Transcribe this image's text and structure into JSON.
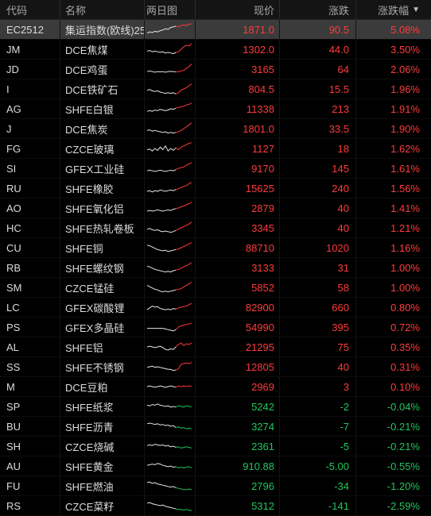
{
  "columns": {
    "code": "代码",
    "name": "名称",
    "spark": "两日图",
    "price": "现价",
    "change": "涨跌",
    "pct": "涨跌幅",
    "sort_indicator": "▼"
  },
  "colors": {
    "up": "#ff3b3b",
    "down": "#22c55e",
    "spark_base": "#e8e8e8"
  },
  "rows": [
    {
      "code": "EC2512",
      "name": "集运指数(欧线)25",
      "price": "1871.0",
      "change": "90.5",
      "pct": "5.08%",
      "dir": "up",
      "spark": [
        0.2,
        0.3,
        0.25,
        0.35,
        0.3,
        0.4,
        0.45,
        0.55,
        0.5,
        0.65,
        0.7,
        0.75,
        0.7,
        0.8,
        0.85,
        0.8,
        0.9,
        0.95
      ]
    },
    {
      "code": "JM",
      "name": "DCE焦煤",
      "price": "1302.0",
      "change": "44.0",
      "pct": "3.50%",
      "dir": "up",
      "spark": [
        0.35,
        0.4,
        0.3,
        0.35,
        0.3,
        0.25,
        0.3,
        0.2,
        0.25,
        0.2,
        0.15,
        0.25,
        0.3,
        0.5,
        0.7,
        0.8,
        0.75,
        0.95
      ]
    },
    {
      "code": "JD",
      "name": "DCE鸡蛋",
      "price": "3165",
      "change": "64",
      "pct": "2.06%",
      "dir": "up",
      "spark": [
        0.3,
        0.35,
        0.3,
        0.25,
        0.3,
        0.28,
        0.3,
        0.25,
        0.3,
        0.32,
        0.3,
        0.28,
        0.3,
        0.35,
        0.4,
        0.55,
        0.7,
        0.9
      ]
    },
    {
      "code": "I",
      "name": "DCE铁矿石",
      "price": "804.5",
      "change": "15.5",
      "pct": "1.96%",
      "dir": "up",
      "spark": [
        0.4,
        0.45,
        0.35,
        0.3,
        0.35,
        0.25,
        0.2,
        0.15,
        0.2,
        0.15,
        0.2,
        0.1,
        0.2,
        0.4,
        0.5,
        0.6,
        0.75,
        0.9
      ]
    },
    {
      "code": "AG",
      "name": "SHFE白银",
      "price": "11338",
      "change": "213",
      "pct": "1.91%",
      "dir": "up",
      "spark": [
        0.3,
        0.35,
        0.3,
        0.4,
        0.35,
        0.45,
        0.4,
        0.35,
        0.4,
        0.5,
        0.45,
        0.55,
        0.6,
        0.65,
        0.7,
        0.8,
        0.85,
        0.95
      ]
    },
    {
      "code": "J",
      "name": "DCE焦炭",
      "price": "1801.0",
      "change": "33.5",
      "pct": "1.90%",
      "dir": "up",
      "spark": [
        0.35,
        0.4,
        0.3,
        0.35,
        0.3,
        0.25,
        0.2,
        0.25,
        0.15,
        0.2,
        0.15,
        0.2,
        0.25,
        0.35,
        0.5,
        0.65,
        0.8,
        0.95
      ]
    },
    {
      "code": "FG",
      "name": "CZCE玻璃",
      "price": "1127",
      "change": "18",
      "pct": "1.62%",
      "dir": "up",
      "spark": [
        0.4,
        0.45,
        0.3,
        0.5,
        0.35,
        0.6,
        0.4,
        0.7,
        0.3,
        0.5,
        0.35,
        0.55,
        0.4,
        0.6,
        0.7,
        0.8,
        0.9,
        0.95
      ]
    },
    {
      "code": "SI",
      "name": "GFEX工业硅",
      "price": "9170",
      "change": "145",
      "pct": "1.61%",
      "dir": "up",
      "spark": [
        0.3,
        0.35,
        0.3,
        0.25,
        0.3,
        0.35,
        0.3,
        0.25,
        0.3,
        0.35,
        0.3,
        0.4,
        0.5,
        0.55,
        0.6,
        0.75,
        0.85,
        0.95
      ]
    },
    {
      "code": "RU",
      "name": "SHFE橡胶",
      "price": "15625",
      "change": "240",
      "pct": "1.56%",
      "dir": "up",
      "spark": [
        0.25,
        0.3,
        0.2,
        0.3,
        0.25,
        0.35,
        0.3,
        0.25,
        0.3,
        0.35,
        0.3,
        0.4,
        0.45,
        0.55,
        0.65,
        0.7,
        0.85,
        0.95
      ]
    },
    {
      "code": "AO",
      "name": "SHFE氧化铝",
      "price": "2879",
      "change": "40",
      "pct": "1.41%",
      "dir": "up",
      "spark": [
        0.25,
        0.3,
        0.25,
        0.3,
        0.35,
        0.3,
        0.25,
        0.3,
        0.35,
        0.3,
        0.4,
        0.45,
        0.5,
        0.6,
        0.65,
        0.75,
        0.85,
        0.95
      ]
    },
    {
      "code": "HC",
      "name": "SHFE热轧卷板",
      "price": "3345",
      "change": "40",
      "pct": "1.21%",
      "dir": "up",
      "spark": [
        0.4,
        0.45,
        0.35,
        0.3,
        0.35,
        0.25,
        0.2,
        0.25,
        0.2,
        0.15,
        0.2,
        0.3,
        0.4,
        0.5,
        0.6,
        0.7,
        0.8,
        0.95
      ]
    },
    {
      "code": "CU",
      "name": "SHFE铜",
      "price": "88710",
      "change": "1020",
      "pct": "1.16%",
      "dir": "up",
      "spark": [
        0.7,
        0.65,
        0.55,
        0.45,
        0.35,
        0.3,
        0.25,
        0.3,
        0.2,
        0.25,
        0.3,
        0.35,
        0.4,
        0.5,
        0.6,
        0.7,
        0.8,
        0.9
      ]
    },
    {
      "code": "RB",
      "name": "SHFE螺纹钢",
      "price": "3133",
      "change": "31",
      "pct": "1.00%",
      "dir": "up",
      "spark": [
        0.6,
        0.55,
        0.45,
        0.35,
        0.3,
        0.25,
        0.2,
        0.15,
        0.2,
        0.15,
        0.25,
        0.3,
        0.35,
        0.45,
        0.55,
        0.65,
        0.75,
        0.9
      ]
    },
    {
      "code": "SM",
      "name": "CZCE锰硅",
      "price": "5852",
      "change": "58",
      "pct": "1.00%",
      "dir": "up",
      "spark": [
        0.65,
        0.55,
        0.45,
        0.35,
        0.3,
        0.2,
        0.15,
        0.2,
        0.15,
        0.2,
        0.25,
        0.3,
        0.35,
        0.4,
        0.55,
        0.65,
        0.8,
        0.9
      ]
    },
    {
      "code": "LC",
      "name": "GFEX碳酸锂",
      "price": "82900",
      "change": "660",
      "pct": "0.80%",
      "dir": "up",
      "spark": [
        0.3,
        0.45,
        0.6,
        0.5,
        0.55,
        0.4,
        0.35,
        0.3,
        0.35,
        0.3,
        0.4,
        0.35,
        0.45,
        0.5,
        0.55,
        0.6,
        0.7,
        0.8
      ]
    },
    {
      "code": "PS",
      "name": "GFEX多晶硅",
      "price": "54990",
      "change": "395",
      "pct": "0.72%",
      "dir": "up",
      "spark": [
        0.4,
        0.4,
        0.4,
        0.4,
        0.4,
        0.4,
        0.4,
        0.35,
        0.3,
        0.25,
        0.2,
        0.3,
        0.5,
        0.6,
        0.65,
        0.7,
        0.75,
        0.8
      ]
    },
    {
      "code": "AL",
      "name": "SHFE铝",
      "price": "21295",
      "change": "75",
      "pct": "0.35%",
      "dir": "up",
      "spark": [
        0.5,
        0.55,
        0.5,
        0.45,
        0.5,
        0.55,
        0.45,
        0.3,
        0.25,
        0.35,
        0.3,
        0.5,
        0.7,
        0.8,
        0.6,
        0.75,
        0.7,
        0.8
      ]
    },
    {
      "code": "SS",
      "name": "SHFE不锈钢",
      "price": "12805",
      "change": "40",
      "pct": "0.31%",
      "dir": "up",
      "spark": [
        0.45,
        0.5,
        0.55,
        0.45,
        0.5,
        0.45,
        0.4,
        0.35,
        0.3,
        0.3,
        0.2,
        0.25,
        0.35,
        0.7,
        0.75,
        0.8,
        0.75,
        0.85
      ]
    },
    {
      "code": "M",
      "name": "DCE豆粕",
      "price": "2969",
      "change": "3",
      "pct": "0.10%",
      "dir": "up",
      "spark": [
        0.5,
        0.55,
        0.5,
        0.45,
        0.5,
        0.55,
        0.5,
        0.45,
        0.5,
        0.55,
        0.5,
        0.45,
        0.55,
        0.5,
        0.55,
        0.5,
        0.55,
        0.55
      ]
    },
    {
      "code": "SP",
      "name": "SHFE纸浆",
      "price": "5242",
      "change": "-2",
      "pct": "-0.04%",
      "dir": "down",
      "spark": [
        0.6,
        0.55,
        0.65,
        0.6,
        0.7,
        0.6,
        0.55,
        0.5,
        0.55,
        0.45,
        0.5,
        0.45,
        0.55,
        0.5,
        0.45,
        0.55,
        0.5,
        0.45
      ]
    },
    {
      "code": "BU",
      "name": "SHFE沥青",
      "price": "3274",
      "change": "-7",
      "pct": "-0.21%",
      "dir": "down",
      "spark": [
        0.7,
        0.75,
        0.7,
        0.65,
        0.7,
        0.6,
        0.65,
        0.55,
        0.6,
        0.5,
        0.55,
        0.4,
        0.45,
        0.35,
        0.4,
        0.3,
        0.35,
        0.3
      ]
    },
    {
      "code": "SH",
      "name": "CZCE烧碱",
      "price": "2361",
      "change": "-5",
      "pct": "-0.21%",
      "dir": "down",
      "spark": [
        0.55,
        0.6,
        0.55,
        0.65,
        0.6,
        0.55,
        0.6,
        0.5,
        0.55,
        0.45,
        0.5,
        0.4,
        0.45,
        0.35,
        0.4,
        0.45,
        0.4,
        0.35
      ]
    },
    {
      "code": "AU",
      "name": "SHFE黄金",
      "price": "910.88",
      "change": "-5.00",
      "pct": "-0.55%",
      "dir": "down",
      "spark": [
        0.55,
        0.6,
        0.65,
        0.6,
        0.7,
        0.65,
        0.55,
        0.5,
        0.45,
        0.5,
        0.4,
        0.45,
        0.35,
        0.4,
        0.35,
        0.4,
        0.45,
        0.35
      ]
    },
    {
      "code": "FU",
      "name": "SHFE燃油",
      "price": "2796",
      "change": "-34",
      "pct": "-1.20%",
      "dir": "down",
      "spark": [
        0.75,
        0.8,
        0.7,
        0.75,
        0.65,
        0.6,
        0.55,
        0.5,
        0.45,
        0.4,
        0.45,
        0.35,
        0.3,
        0.25,
        0.2,
        0.2,
        0.25,
        0.2
      ]
    },
    {
      "code": "RS",
      "name": "CZCE菜籽",
      "price": "5312",
      "change": "-141",
      "pct": "-2.59%",
      "dir": "down",
      "spark": [
        0.7,
        0.75,
        0.65,
        0.6,
        0.55,
        0.5,
        0.55,
        0.45,
        0.4,
        0.35,
        0.3,
        0.25,
        0.2,
        0.2,
        0.15,
        0.2,
        0.15,
        0.1
      ]
    }
  ]
}
